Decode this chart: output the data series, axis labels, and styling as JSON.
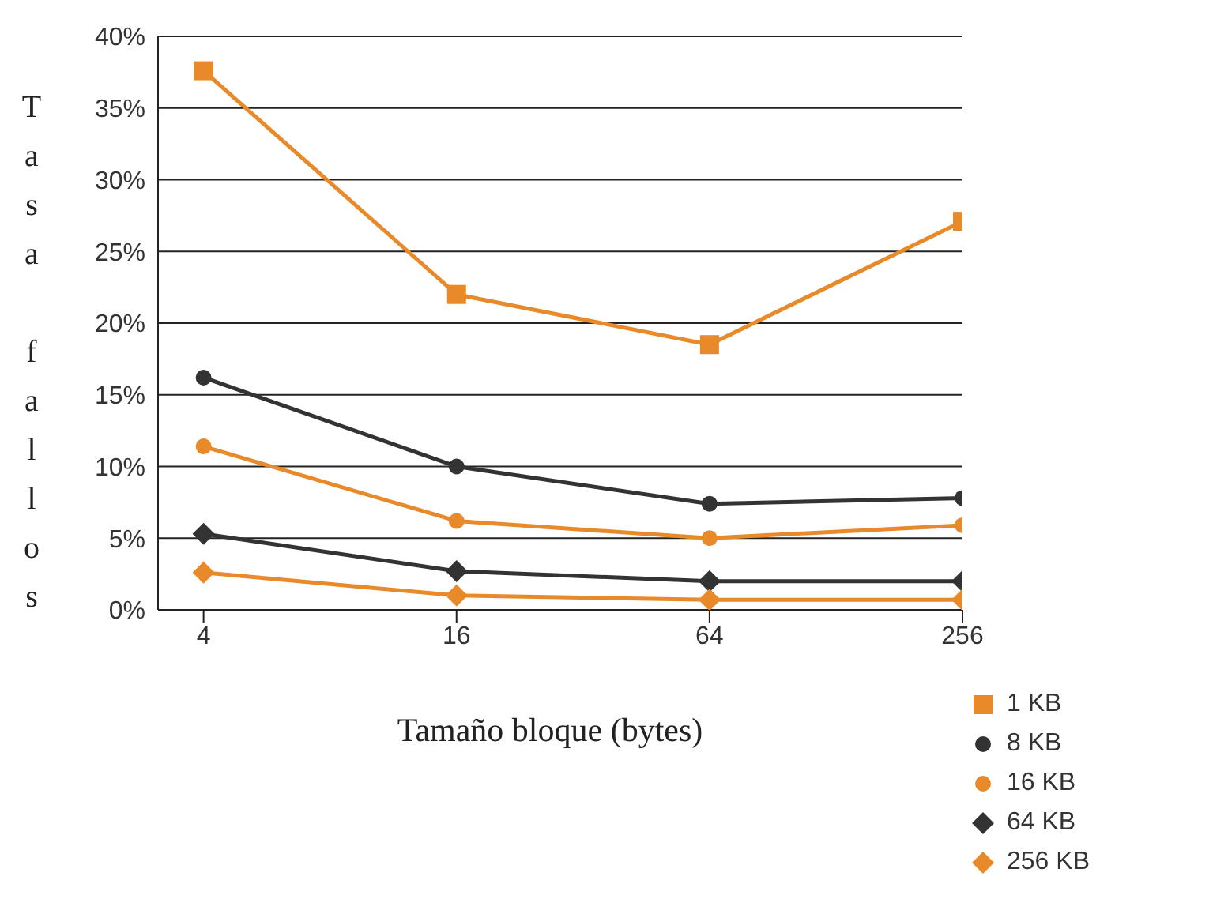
{
  "chart_data": {
    "type": "line",
    "xlabel": "Tamaño bloque (bytes)",
    "ylabel": "Tasa fallos",
    "categories": [
      "4",
      "16",
      "64",
      "256"
    ],
    "series": [
      {
        "name": "1 KB",
        "color": "#e8892a",
        "marker": "square",
        "values": [
          37.6,
          22.0,
          18.5,
          27.1
        ]
      },
      {
        "name": "8 KB",
        "color": "#333333",
        "marker": "circle",
        "values": [
          16.2,
          10.0,
          7.4,
          7.8
        ]
      },
      {
        "name": "16 KB",
        "color": "#e8892a",
        "marker": "circle",
        "values": [
          11.4,
          6.2,
          5.0,
          5.9
        ]
      },
      {
        "name": "64 KB",
        "color": "#333333",
        "marker": "diamond",
        "values": [
          5.3,
          2.7,
          2.0,
          2.0
        ]
      },
      {
        "name": "256 KB",
        "color": "#e8892a",
        "marker": "diamond",
        "values": [
          2.6,
          1.0,
          0.7,
          0.7
        ]
      }
    ],
    "ylim": [
      0,
      40
    ],
    "yticks": [
      {
        "value": 0,
        "label": "0%"
      },
      {
        "value": 5,
        "label": "5%"
      },
      {
        "value": 10,
        "label": "10%"
      },
      {
        "value": 15,
        "label": "15%"
      },
      {
        "value": 20,
        "label": "20%"
      },
      {
        "value": 25,
        "label": "25%"
      },
      {
        "value": 30,
        "label": "30%"
      },
      {
        "value": 35,
        "label": "35%"
      },
      {
        "value": 40,
        "label": "40%"
      }
    ],
    "grid": "y",
    "legend": "bottom right",
    "line_style": "solid"
  }
}
